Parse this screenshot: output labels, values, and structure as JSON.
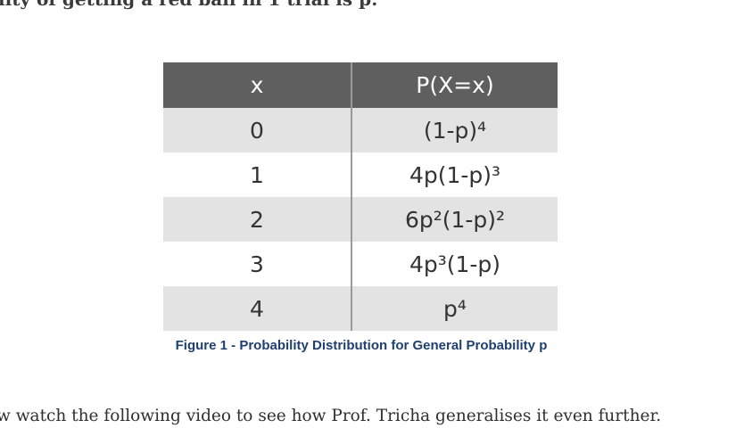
{
  "intro_text": "lity of getting a red ball in 1 trial is p:",
  "table": {
    "headers": [
      "x",
      "P(X=x)"
    ],
    "rows": [
      {
        "x": "0",
        "p": "(1-p)⁴"
      },
      {
        "x": "1",
        "p": "4p(1-p)³"
      },
      {
        "x": "2",
        "p": "6p²(1-p)²"
      },
      {
        "x": "3",
        "p": "4p³(1-p)"
      },
      {
        "x": "4",
        "p": "p⁴"
      }
    ]
  },
  "caption": "Figure 1 - Probability Distribution for General Probability p",
  "outro_text": "w watch the following video to see how Prof. Tricha generalises it even further."
}
